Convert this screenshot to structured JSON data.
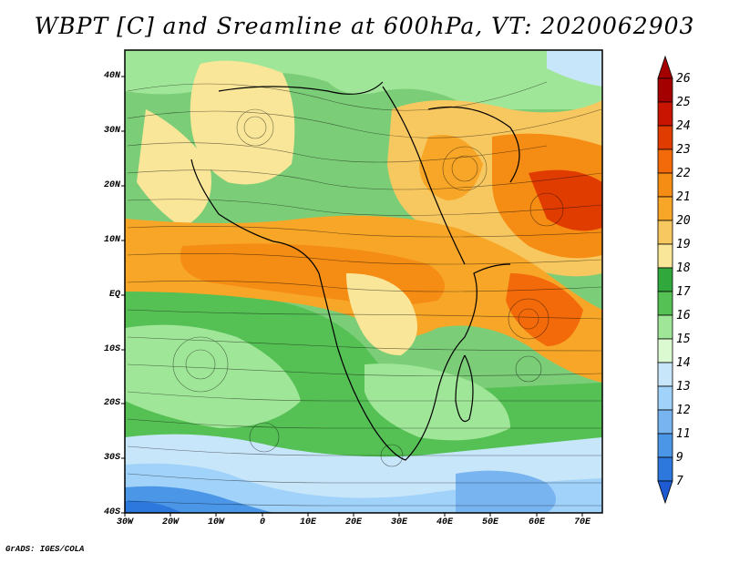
{
  "title": "WBPT [C] and Sreamline at 600hPa, VT: 2020062903",
  "lat_labels": [
    "40N",
    "30N",
    "20N",
    "10N",
    "EQ",
    "10S",
    "20S",
    "30S",
    "40S"
  ],
  "lon_labels": [
    "30W",
    "20W",
    "10W",
    "0",
    "10E",
    "20E",
    "30E",
    "40E",
    "50E",
    "60E",
    "70E"
  ],
  "colorbar": {
    "labels": [
      "26",
      "25",
      "24",
      "23",
      "22",
      "21",
      "20",
      "19",
      "18",
      "17",
      "16",
      "15",
      "14",
      "13",
      "12",
      "11",
      "9",
      "7"
    ],
    "colors": [
      "#a50000",
      "#c81400",
      "#e03c00",
      "#f26a0a",
      "#f58c14",
      "#f8a628",
      "#f8c860",
      "#fae698",
      "#31a83c",
      "#55c054",
      "#a0e698",
      "#dcfad2",
      "#c8e6fa",
      "#a0d2fa",
      "#78b4f0",
      "#4b96e6",
      "#2d78dc",
      "#1e5ad2"
    ]
  },
  "credit": "GrADS: IGES/COLA"
}
